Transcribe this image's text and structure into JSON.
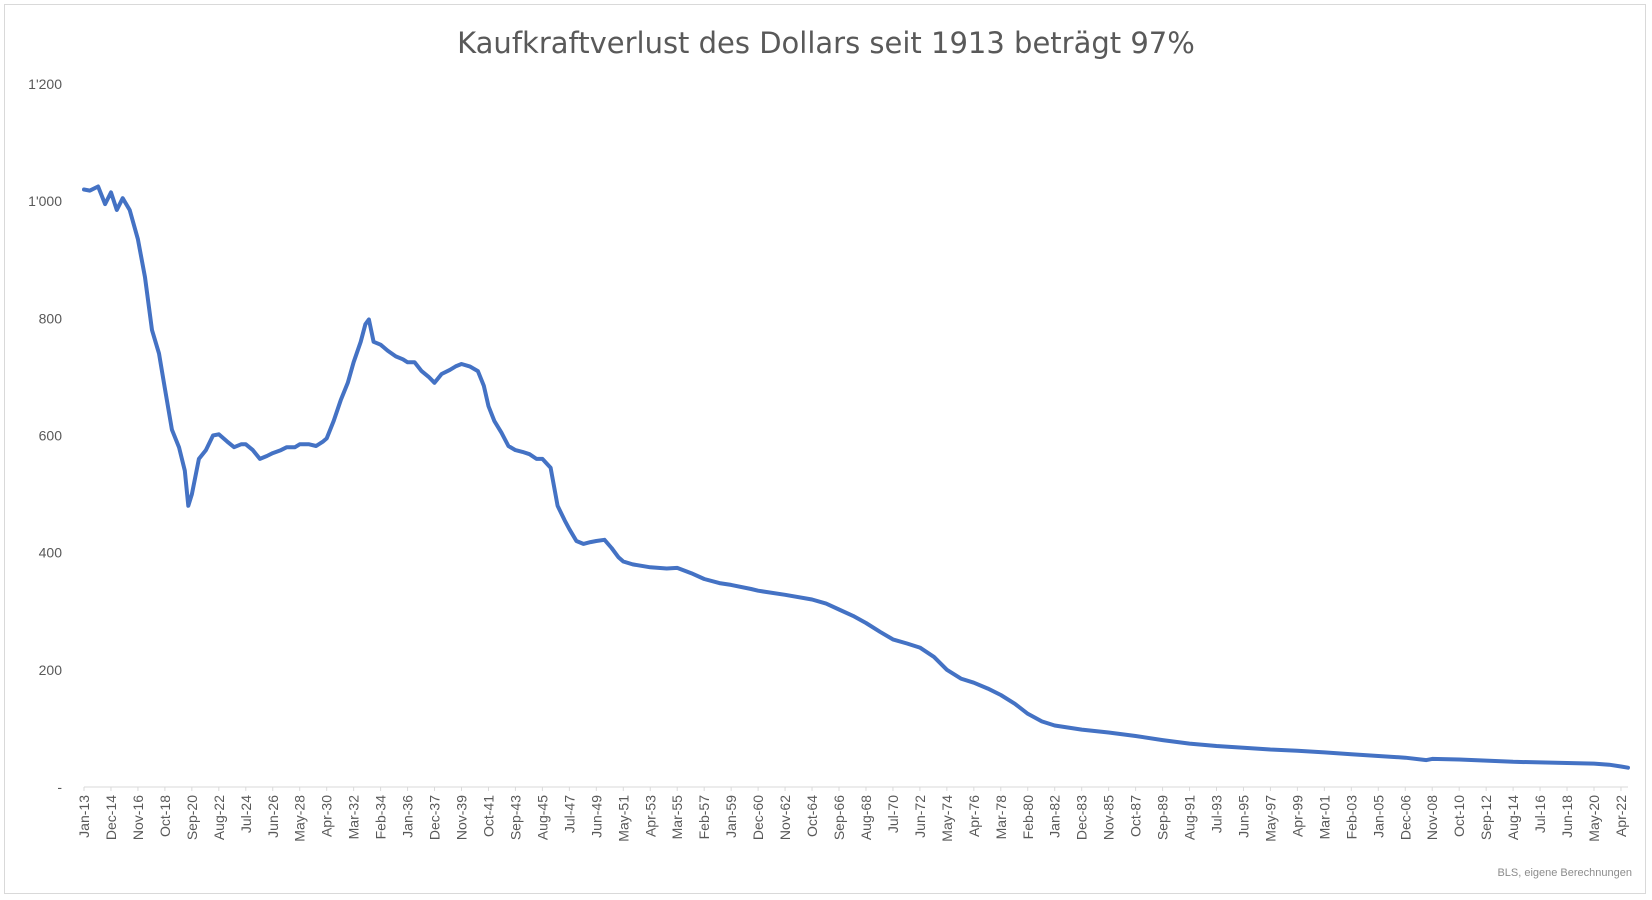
{
  "chart_data": {
    "type": "line",
    "title": "Kaufkraftverlust des Dollars seit 1913 beträgt 97%",
    "source": "BLS, eigene Berechnungen",
    "xlabel": "",
    "ylabel": "",
    "ylim": [
      0,
      1200
    ],
    "grid": false,
    "line_color": "#4472C4",
    "y_ticks": [
      {
        "value": 0,
        "label": "-"
      },
      {
        "value": 200,
        "label": "200"
      },
      {
        "value": 400,
        "label": "400"
      },
      {
        "value": 600,
        "label": "600"
      },
      {
        "value": 800,
        "label": "800"
      },
      {
        "value": 1000,
        "label": "1'000"
      },
      {
        "value": 1200,
        "label": "1'200"
      }
    ],
    "x_tick_labels": [
      "Jan-13",
      "Dec-14",
      "Nov-16",
      "Oct-18",
      "Sep-20",
      "Aug-22",
      "Jul-24",
      "Jun-26",
      "May-28",
      "Apr-30",
      "Mar-32",
      "Feb-34",
      "Jan-36",
      "Dec-37",
      "Nov-39",
      "Oct-41",
      "Sep-43",
      "Aug-45",
      "Jul-47",
      "Jun-49",
      "May-51",
      "Apr-53",
      "Mar-55",
      "Feb-57",
      "Jan-59",
      "Dec-60",
      "Nov-62",
      "Oct-64",
      "Sep-66",
      "Aug-68",
      "Jul-70",
      "Jun-72",
      "May-74",
      "Apr-76",
      "Mar-78",
      "Feb-80",
      "Jan-82",
      "Dec-83",
      "Nov-85",
      "Oct-87",
      "Sep-89",
      "Aug-91",
      "Jul-93",
      "Jun-95",
      "May-97",
      "Apr-99",
      "Mar-01",
      "Feb-03",
      "Jan-05",
      "Dec-06",
      "Nov-08",
      "Oct-10",
      "Sep-12",
      "Aug-14",
      "Jul-16",
      "Jun-18",
      "May-20",
      "Apr-22"
    ],
    "series": [
      {
        "points": [
          [
            "1913-01",
            1020
          ],
          [
            "1913-06",
            1018
          ],
          [
            "1914-01",
            1025
          ],
          [
            "1914-07",
            995
          ],
          [
            "1914-12",
            1015
          ],
          [
            "1915-05",
            985
          ],
          [
            "1915-10",
            1005
          ],
          [
            "1916-04",
            985
          ],
          [
            "1916-11",
            935
          ],
          [
            "1917-05",
            870
          ],
          [
            "1917-11",
            780
          ],
          [
            "1918-05",
            740
          ],
          [
            "1918-10",
            680
          ],
          [
            "1919-04",
            610
          ],
          [
            "1919-10",
            580
          ],
          [
            "1920-03",
            540
          ],
          [
            "1920-06",
            480
          ],
          [
            "1920-09",
            500
          ],
          [
            "1921-03",
            560
          ],
          [
            "1921-09",
            575
          ],
          [
            "1922-03",
            600
          ],
          [
            "1922-08",
            602
          ],
          [
            "1923-03",
            590
          ],
          [
            "1923-09",
            580
          ],
          [
            "1924-03",
            585
          ],
          [
            "1924-07",
            585
          ],
          [
            "1925-01",
            575
          ],
          [
            "1925-07",
            560
          ],
          [
            "1926-01",
            565
          ],
          [
            "1926-06",
            570
          ],
          [
            "1927-01",
            575
          ],
          [
            "1927-06",
            580
          ],
          [
            "1928-01",
            580
          ],
          [
            "1928-05",
            585
          ],
          [
            "1929-01",
            585
          ],
          [
            "1929-07",
            582
          ],
          [
            "1930-01",
            590
          ],
          [
            "1930-04",
            595
          ],
          [
            "1930-10",
            625
          ],
          [
            "1931-04",
            660
          ],
          [
            "1931-10",
            690
          ],
          [
            "1932-03",
            725
          ],
          [
            "1932-09",
            760
          ],
          [
            "1933-01",
            790
          ],
          [
            "1933-04",
            798
          ],
          [
            "1933-08",
            760
          ],
          [
            "1934-02",
            755
          ],
          [
            "1934-08",
            745
          ],
          [
            "1935-03",
            735
          ],
          [
            "1935-09",
            730
          ],
          [
            "1936-01",
            725
          ],
          [
            "1936-07",
            725
          ],
          [
            "1937-01",
            710
          ],
          [
            "1937-07",
            700
          ],
          [
            "1937-12",
            690
          ],
          [
            "1938-06",
            705
          ],
          [
            "1939-01",
            712
          ],
          [
            "1939-06",
            718
          ],
          [
            "1939-11",
            722
          ],
          [
            "1940-06",
            718
          ],
          [
            "1941-01",
            710
          ],
          [
            "1941-06",
            685
          ],
          [
            "1941-10",
            650
          ],
          [
            "1942-03",
            625
          ],
          [
            "1942-09",
            605
          ],
          [
            "1943-03",
            582
          ],
          [
            "1943-09",
            575
          ],
          [
            "1944-03",
            572
          ],
          [
            "1944-09",
            568
          ],
          [
            "1945-03",
            560
          ],
          [
            "1945-08",
            560
          ],
          [
            "1946-03",
            545
          ],
          [
            "1946-09",
            480
          ],
          [
            "1947-03",
            455
          ],
          [
            "1947-07",
            440
          ],
          [
            "1948-01",
            420
          ],
          [
            "1948-07",
            415
          ],
          [
            "1949-01",
            418
          ],
          [
            "1949-06",
            420
          ],
          [
            "1950-01",
            422
          ],
          [
            "1950-07",
            408
          ],
          [
            "1951-01",
            392
          ],
          [
            "1951-05",
            385
          ],
          [
            "1952-01",
            380
          ],
          [
            "1953-04",
            375
          ],
          [
            "1954-06",
            373
          ],
          [
            "1955-03",
            374
          ],
          [
            "1956-03",
            365
          ],
          [
            "1957-02",
            355
          ],
          [
            "1958-03",
            348
          ],
          [
            "1959-01",
            345
          ],
          [
            "1960-06",
            338
          ],
          [
            "1960-12",
            335
          ],
          [
            "1962-11",
            328
          ],
          [
            "1964-10",
            320
          ],
          [
            "1965-10",
            313
          ],
          [
            "1966-09",
            303
          ],
          [
            "1967-09",
            292
          ],
          [
            "1968-08",
            280
          ],
          [
            "1969-08",
            265
          ],
          [
            "1970-07",
            252
          ],
          [
            "1971-07",
            245
          ],
          [
            "1972-06",
            238
          ],
          [
            "1973-06",
            222
          ],
          [
            "1974-05",
            200
          ],
          [
            "1975-05",
            185
          ],
          [
            "1976-04",
            178
          ],
          [
            "1977-04",
            168
          ],
          [
            "1978-03",
            157
          ],
          [
            "1979-03",
            142
          ],
          [
            "1980-02",
            125
          ],
          [
            "1981-02",
            112
          ],
          [
            "1982-01",
            105
          ],
          [
            "1983-12",
            98
          ],
          [
            "1985-11",
            93
          ],
          [
            "1987-10",
            87
          ],
          [
            "1989-09",
            80
          ],
          [
            "1991-08",
            74
          ],
          [
            "1993-07",
            70
          ],
          [
            "1995-06",
            67
          ],
          [
            "1997-05",
            64
          ],
          [
            "1999-04",
            62
          ],
          [
            "2001-03",
            59
          ],
          [
            "2003-02",
            56
          ],
          [
            "2005-01",
            53
          ],
          [
            "2006-12",
            50
          ],
          [
            "2008-06",
            46
          ],
          [
            "2008-11",
            48
          ],
          [
            "2010-10",
            47
          ],
          [
            "2012-09",
            45
          ],
          [
            "2014-08",
            43
          ],
          [
            "2016-07",
            42
          ],
          [
            "2018-06",
            41
          ],
          [
            "2020-05",
            40
          ],
          [
            "2021-06",
            38
          ],
          [
            "2022-04",
            35
          ],
          [
            "2022-10",
            33
          ]
        ]
      }
    ]
  }
}
